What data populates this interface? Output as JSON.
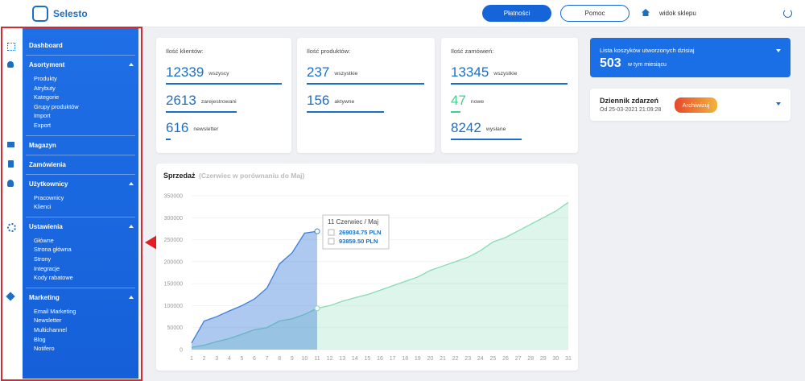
{
  "header": {
    "logo": "Selesto",
    "buttons": [
      "Płatności",
      "Pomoc"
    ],
    "shop_link": "widok sklepu"
  },
  "menu": [
    {
      "label": "Dashboard"
    },
    {
      "label": "Asortyment",
      "children": [
        "Produkty",
        "Atrybuty",
        "Kategorie",
        "Grupy produktów",
        "Import",
        "Export"
      ]
    },
    {
      "label": "Magazyn"
    },
    {
      "label": "Zamówienia"
    },
    {
      "label": "Użytkownicy",
      "children": [
        "Pracownicy",
        "Klienci"
      ]
    },
    {
      "label": "Ustawienia",
      "children": [
        "Główne",
        "Strona główna",
        "Strony",
        "Integracje",
        "Kody rabatowe"
      ]
    },
    {
      "label": "Marketing",
      "children": [
        "Email Marketing",
        "Newsletter",
        "Multichannel",
        "Blog",
        "Notifero"
      ]
    }
  ],
  "stats": [
    {
      "title": "Ilość klientów:",
      "rows": [
        {
          "value": 12339,
          "label": "wszyscy"
        },
        {
          "value": 2613,
          "label": "zarejestrowani"
        },
        {
          "value": 616,
          "label": "newsletter"
        }
      ]
    },
    {
      "title": "Ilość produktów:",
      "rows": [
        {
          "value": 237,
          "label": "wszystkie"
        },
        {
          "value": 156,
          "label": "aktywne"
        }
      ]
    },
    {
      "title": "Ilość zamówień:",
      "rows": [
        {
          "value": 13345,
          "label": "wszystkie"
        },
        {
          "value": 47,
          "label": "nowe",
          "color": "#3fcf8e"
        },
        {
          "value": 8242,
          "label": "wysłane"
        }
      ]
    }
  ],
  "carts": {
    "title": "Lista koszyków utworzonych dzisiaj",
    "value": 503,
    "label": "w tym miesiącu"
  },
  "log": {
    "title": "Dziennik zdarzeń",
    "date": "Od 25-03-2021 21:09:28",
    "button": "Archiwizuj"
  },
  "chart_data": {
    "type": "area",
    "title": "Sprzedaż",
    "subtitle": "(Czerwiec w porównaniu do Maj)",
    "x": [
      1,
      2,
      3,
      4,
      5,
      6,
      7,
      8,
      9,
      10,
      11,
      12,
      13,
      14,
      15,
      16,
      17,
      18,
      19,
      20,
      21,
      22,
      23,
      24,
      25,
      26,
      27,
      28,
      29,
      30,
      31
    ],
    "xlim": [
      1,
      31
    ],
    "ylim": [
      0,
      350000
    ],
    "yticks": [
      0,
      50000,
      100000,
      150000,
      200000,
      250000,
      300000,
      350000
    ],
    "series": [
      {
        "color": "#3b7fd9",
        "values": [
          15000,
          65000,
          75000,
          88000,
          100000,
          115000,
          140000,
          195000,
          220000,
          265000,
          269034.75,
          null,
          null,
          null,
          null,
          null,
          null,
          null,
          null,
          null,
          null,
          null,
          null,
          null,
          null,
          null,
          null,
          null,
          null,
          null,
          null
        ]
      },
      {
        "color": "#86dcb4",
        "values": [
          5000,
          10000,
          18000,
          25000,
          35000,
          45000,
          50000,
          65000,
          70000,
          80000,
          93859.5,
          100000,
          110000,
          118000,
          125000,
          135000,
          145000,
          155000,
          165000,
          180000,
          190000,
          200000,
          210000,
          225000,
          245000,
          255000,
          270000,
          285000,
          300000,
          315000,
          335000
        ]
      }
    ],
    "tooltip": {
      "title": "11 Czerwiec / Maj",
      "index": 10,
      "value_labels": [
        "269034.75 PLN",
        "93859.50 PLN"
      ]
    }
  }
}
